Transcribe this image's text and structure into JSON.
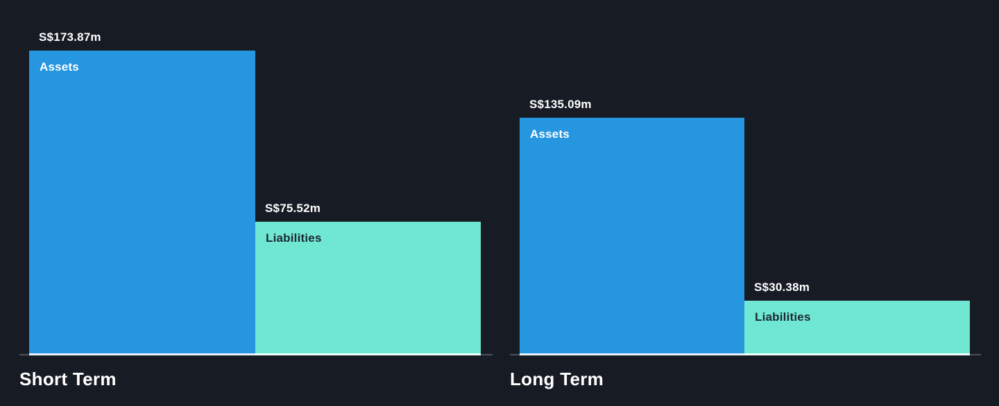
{
  "chart_data": {
    "type": "bar",
    "unit": "S$m",
    "grid": false,
    "legend": "none",
    "background": "#171B24",
    "axis_line_color": "#4A5461",
    "groups": [
      {
        "title": "Short Term",
        "bars": [
          {
            "label": "Assets",
            "value": 173.87,
            "value_label": "S$173.87m",
            "color": "#2696E0",
            "label_color": "#FFFFFF"
          },
          {
            "label": "Liabilities",
            "value": 75.52,
            "value_label": "S$75.52m",
            "color": "#70E7D2",
            "label_color": "#1B2733"
          }
        ]
      },
      {
        "title": "Long Term",
        "bars": [
          {
            "label": "Assets",
            "value": 135.09,
            "value_label": "S$135.09m",
            "color": "#2696E0",
            "label_color": "#FFFFFF"
          },
          {
            "label": "Liabilities",
            "value": 30.38,
            "value_label": "S$30.38m",
            "color": "#70E7D2",
            "label_color": "#1B2733"
          }
        ]
      }
    ]
  }
}
